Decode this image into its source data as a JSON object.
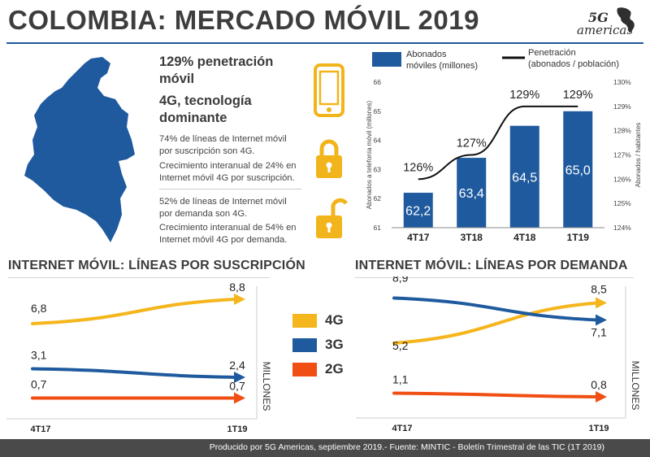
{
  "header": {
    "title": "COLOMBIA: MERCADO MÓVIL 2019"
  },
  "logo": {
    "brand_top": "5G",
    "brand_bottom": "americas"
  },
  "summary": {
    "headline_1": "129% penetración móvil",
    "headline_2": "4G, tecnología dominante",
    "para_1": "74% de líneas de Internet móvil por suscripción son 4G.",
    "para_2": "Crecimiento interanual de 24% en Internet móvil 4G por suscripción.",
    "para_3": "52% de líneas de Internet móvil por demanda son 4G.",
    "para_4": "Crecimiento interanual de 54% en Internet móvil 4G por demanda."
  },
  "icons": {
    "phone": "mobile-phone-icon",
    "lock_closed": "lock-closed-icon",
    "lock_open": "lock-open-icon",
    "map": "colombia-map-icon",
    "color_gold": "#f2b41b"
  },
  "colors": {
    "bar": "#1f5a9e",
    "line": "#111111",
    "g4": "#f5b51c",
    "g3": "#1f5a9e",
    "g2": "#f04e12"
  },
  "chart_data": [
    {
      "type": "bar",
      "categories": [
        "4T17",
        "3T18",
        "4T18",
        "1T19"
      ],
      "series": [
        {
          "name": "Abonados móviles (millones)",
          "values": [
            62.2,
            63.4,
            64.5,
            65.0
          ],
          "labels": [
            "62,2",
            "63,4",
            "64,5",
            "65,0"
          ]
        },
        {
          "name": "Penetración (abonados / población)",
          "type": "line",
          "values": [
            126,
            127,
            129,
            129
          ],
          "labels": [
            "126%",
            "127%",
            "129%",
            "129%"
          ]
        }
      ],
      "ylabel": "Abonados a telefonía móvil (millones)",
      "ylim": [
        61,
        66
      ],
      "yticks": [
        "61",
        "62",
        "63",
        "64",
        "65",
        "66"
      ],
      "y2label": "Abonados / habitantes",
      "y2lim": [
        124,
        130
      ],
      "y2ticks": [
        "124%",
        "125%",
        "126%",
        "127%",
        "128%",
        "129%",
        "130%"
      ],
      "legend": {
        "bar_label": "Abonados móviles (millones)",
        "line_label": "Penetración (abonados / población)",
        "position": "top"
      }
    },
    {
      "type": "line",
      "title": "INTERNET MÓVIL: LÍNEAS POR SUSCRIPCIÓN",
      "categories": [
        "4T17",
        "1T19"
      ],
      "series": [
        {
          "name": "4G",
          "values": [
            6.8,
            8.8
          ],
          "labels": [
            "6,8",
            "8,8"
          ]
        },
        {
          "name": "3G",
          "values": [
            3.1,
            2.4
          ],
          "labels": [
            "3,1",
            "2,4"
          ]
        },
        {
          "name": "2G",
          "values": [
            0.7,
            0.7
          ],
          "labels": [
            "0,7",
            "0,7"
          ]
        }
      ],
      "ylabel": "MILLONES"
    },
    {
      "type": "line",
      "title": "INTERNET MÓVIL: LÍNEAS POR DEMANDA",
      "categories": [
        "4T17",
        "1T19"
      ],
      "series": [
        {
          "name": "4G",
          "values": [
            5.2,
            8.5
          ],
          "labels": [
            "5,2",
            "8,5"
          ]
        },
        {
          "name": "3G",
          "values": [
            8.9,
            7.1
          ],
          "labels": [
            "8,9",
            "7,1"
          ]
        },
        {
          "name": "2G",
          "values": [
            1.1,
            0.8
          ],
          "labels": [
            "1,1",
            "0,8"
          ]
        }
      ],
      "ylabel": "MILLONES"
    }
  ],
  "legend": {
    "g4": "4G",
    "g3": "3G",
    "g2": "2G"
  },
  "footer": {
    "text": "Producido por 5G Americas, septiembre 2019.- Fuente: MINTIC - Boletín Trimestral de las TIC (1T 2019)"
  }
}
